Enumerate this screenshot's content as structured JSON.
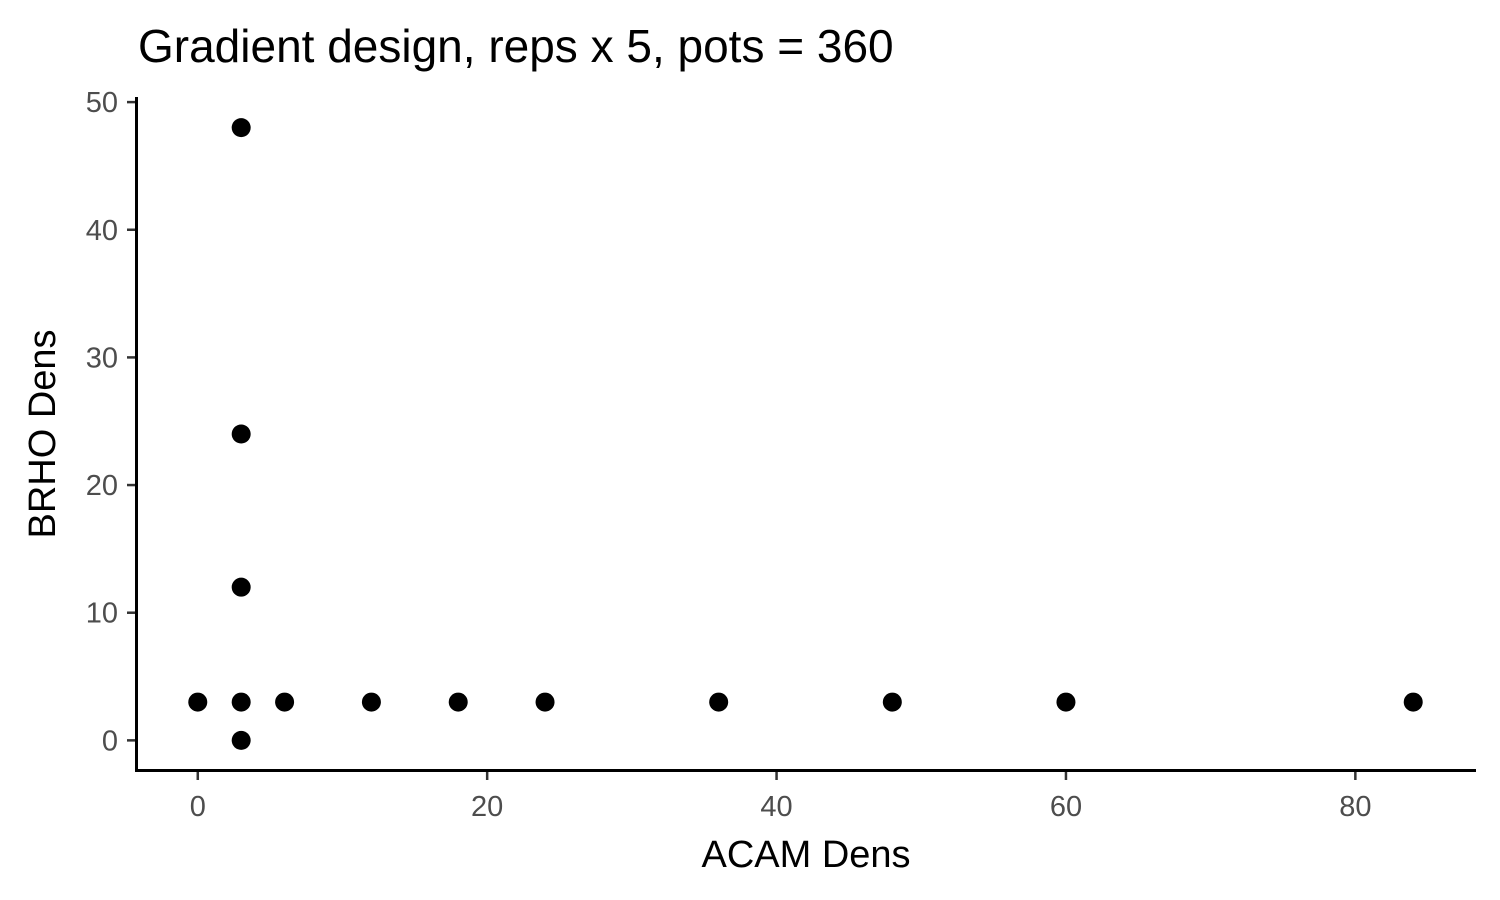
{
  "chart_data": {
    "type": "scatter",
    "title": "Gradient design, reps x 5, pots = 360",
    "xlabel": "ACAM Dens",
    "ylabel": "BRHO Dens",
    "xlim": [
      -4.2,
      88.2
    ],
    "ylim": [
      -2.4,
      50.4
    ],
    "x_ticks": [
      0,
      20,
      40,
      60,
      80
    ],
    "y_ticks": [
      0,
      10,
      20,
      30,
      40,
      50
    ],
    "x_tick_labels": [
      "0",
      "20",
      "40",
      "60",
      "80"
    ],
    "y_tick_labels": [
      "0",
      "10",
      "20",
      "30",
      "40",
      "50"
    ],
    "grid": false,
    "legend": "none",
    "point_color": "#000000",
    "points": [
      {
        "x": 0,
        "y": 3
      },
      {
        "x": 3,
        "y": 0
      },
      {
        "x": 3,
        "y": 3
      },
      {
        "x": 3,
        "y": 12
      },
      {
        "x": 3,
        "y": 24
      },
      {
        "x": 3,
        "y": 48
      },
      {
        "x": 6,
        "y": 3
      },
      {
        "x": 12,
        "y": 3
      },
      {
        "x": 18,
        "y": 3
      },
      {
        "x": 24,
        "y": 3
      },
      {
        "x": 36,
        "y": 3
      },
      {
        "x": 48,
        "y": 3
      },
      {
        "x": 60,
        "y": 3
      },
      {
        "x": 84,
        "y": 3
      }
    ]
  }
}
